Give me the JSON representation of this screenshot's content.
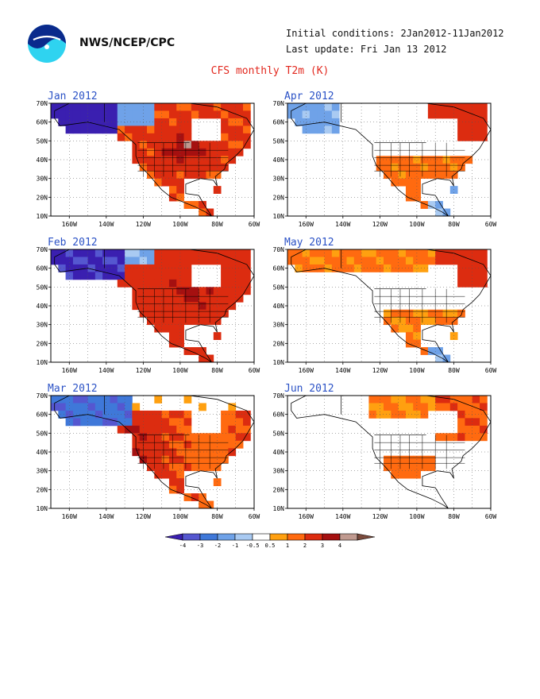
{
  "header": {
    "org": "NWS/NCEP/CPC",
    "initial_conditions": "Initial conditions: 2Jan2012-11Jan2012",
    "last_update": "Last update: Fri Jan 13 2012",
    "title": "CFS monthly T2m (K)"
  },
  "panels": [
    {
      "label": "Jan 2012",
      "regime": 0
    },
    {
      "label": "Apr 2012",
      "regime": 3
    },
    {
      "label": "Feb 2012",
      "regime": 1
    },
    {
      "label": "May 2012",
      "regime": 4
    },
    {
      "label": "Mar 2012",
      "regime": 2
    },
    {
      "label": "Jun 2012",
      "regime": 5
    }
  ],
  "axes": {
    "lat_ticks": [
      "70N",
      "60N",
      "50N",
      "40N",
      "30N",
      "20N",
      "10N"
    ],
    "lon_ticks": [
      "160W",
      "140W",
      "120W",
      "100W",
      "80W",
      "60W"
    ]
  },
  "legend": {
    "ticks": [
      "-4",
      "-3",
      "-2",
      "-1",
      "-0.5",
      "0.5",
      "1",
      "2",
      "3",
      "4"
    ],
    "colors": [
      "#3a1fb0",
      "#5557d0",
      "#3f78d9",
      "#6fa2e8",
      "#a9caf2",
      "#ffffff",
      "#ffa010",
      "#ff6a10",
      "#dc2c10",
      "#a51010",
      "#c09a90",
      "#7a4a3c"
    ]
  }
}
